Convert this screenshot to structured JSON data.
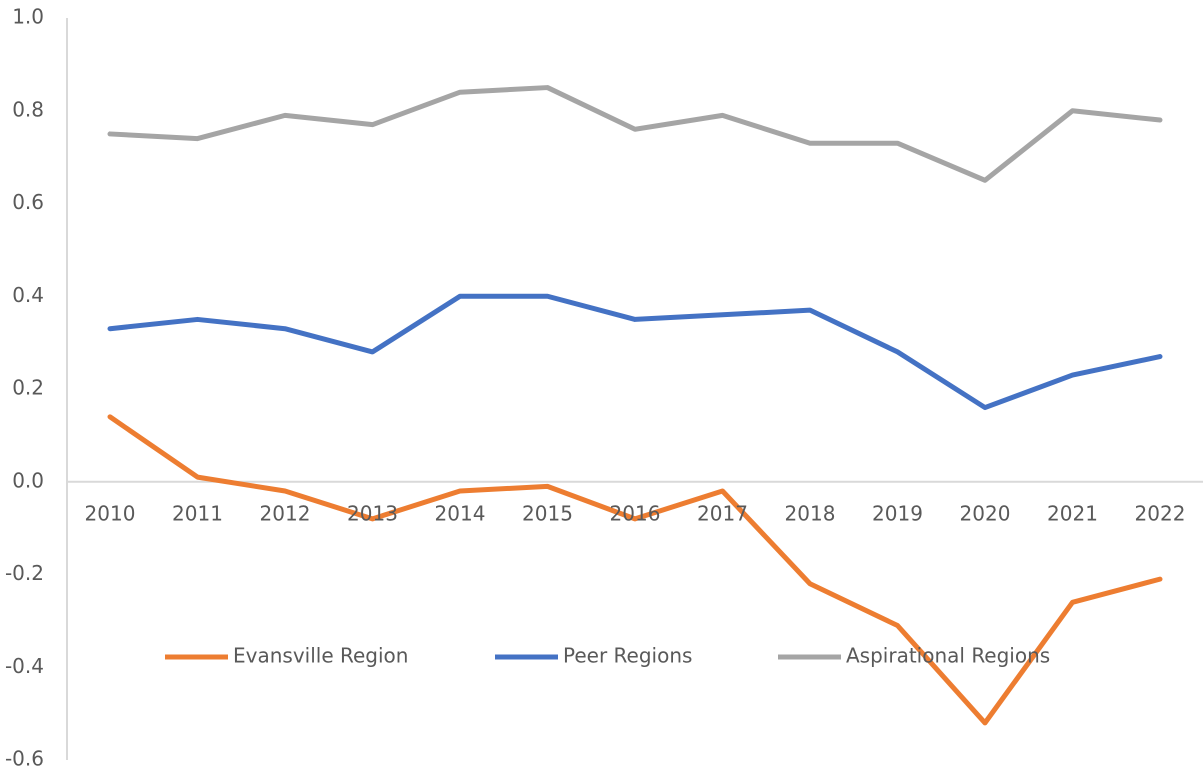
{
  "chart_data": {
    "type": "line",
    "categories": [
      "2010",
      "2011",
      "2012",
      "2013",
      "2014",
      "2015",
      "2016",
      "2017",
      "2018",
      "2019",
      "2020",
      "2021",
      "2022"
    ],
    "series": [
      {
        "name": "Evansville Region",
        "color": "#ED7D31",
        "values": [
          0.14,
          0.01,
          -0.02,
          -0.08,
          -0.02,
          -0.01,
          -0.08,
          -0.02,
          -0.22,
          -0.31,
          -0.52,
          -0.26,
          -0.21
        ]
      },
      {
        "name": "Peer Regions",
        "color": "#4472C4",
        "values": [
          0.33,
          0.35,
          0.33,
          0.28,
          0.4,
          0.4,
          0.35,
          0.36,
          0.37,
          0.28,
          0.16,
          0.23,
          0.27
        ]
      },
      {
        "name": "Aspirational Regions",
        "color": "#A5A5A5",
        "values": [
          0.75,
          0.74,
          0.79,
          0.77,
          0.84,
          0.85,
          0.76,
          0.79,
          0.73,
          0.73,
          0.65,
          0.8,
          0.78
        ]
      }
    ],
    "ylim": [
      -0.6,
      1
    ],
    "yticks": [
      {
        "value": -0.6,
        "label": "-0.6"
      },
      -0.4,
      -0.2,
      {
        "value": 0,
        "label": "0.0"
      },
      0.2,
      0.4,
      0.6,
      0.8,
      {
        "value": 1,
        "label": "1.0"
      }
    ],
    "grid": false,
    "legend": "bottom"
  }
}
